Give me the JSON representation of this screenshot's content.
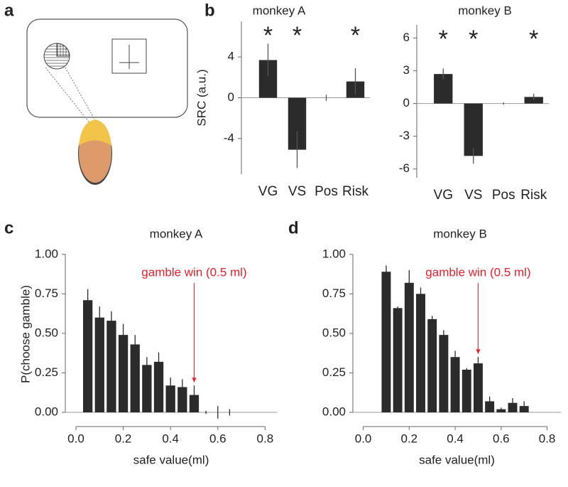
{
  "panel_labels": [
    "a",
    "b",
    "c",
    "d"
  ],
  "chart_data": [
    {
      "type": "bar",
      "title": "monkey A",
      "ylabel": "SRC (a.u.)",
      "color": "#2b2b2b",
      "categories": [
        "VG",
        "VS",
        "Pos",
        "Risk"
      ],
      "values": [
        3.7,
        -5.1,
        0,
        1.6
      ],
      "errors": [
        1.6,
        1.8,
        0.3,
        1.3
      ],
      "significance": [
        "*",
        "*",
        null,
        "*"
      ],
      "ylim": [
        -7.5,
        7.5
      ],
      "yticks": [
        -4,
        0,
        4
      ]
    },
    {
      "type": "bar",
      "title": "monkey B",
      "color": "#2b2b2b",
      "categories": [
        "VG",
        "VS",
        "Pos",
        "Risk"
      ],
      "values": [
        2.7,
        -4.8,
        0,
        0.6
      ],
      "errors": [
        0.5,
        0.7,
        0.1,
        0.3
      ],
      "significance": [
        "*",
        "*",
        null,
        "*"
      ],
      "ylim": [
        -6.8,
        7.2
      ],
      "yticks": [
        -6,
        -3,
        0,
        3,
        6
      ]
    },
    {
      "type": "bar",
      "title": "monkey A",
      "xlabel": "safe value(ml)",
      "ylabel": "P(choose gamble)",
      "color": "#2b2b2b",
      "x": [
        0.05,
        0.1,
        0.15,
        0.2,
        0.25,
        0.3,
        0.35,
        0.4,
        0.45,
        0.5,
        0.55,
        0.6,
        0.65
      ],
      "values": [
        0.71,
        0.6,
        0.58,
        0.49,
        0.43,
        0.3,
        0.32,
        0.17,
        0.16,
        0.11,
        0,
        0,
        0
      ],
      "errors": [
        0.07,
        0.07,
        0.06,
        0.07,
        0.06,
        0.05,
        0.06,
        0.05,
        0.05,
        0.06,
        0.01,
        0.04,
        0.02
      ],
      "annotation": {
        "text": "gamble win (0.5 ml)",
        "x": 0.5,
        "color": "#e8202a"
      },
      "xlim": [
        -0.045,
        0.85
      ],
      "ylim": [
        -0.09,
        1.08
      ],
      "xticks": [
        {
          "value": 0,
          "label": "0.0"
        },
        0.2,
        0.4,
        0.6,
        0.8
      ],
      "yticks": [
        {
          "value": 0,
          "label": "0.00"
        },
        0.25,
        {
          "value": 0.5,
          "label": "0.50"
        },
        0.75,
        {
          "value": 1,
          "label": "1.00"
        }
      ]
    },
    {
      "type": "bar",
      "title": "monkey B",
      "xlabel": "safe value(ml)",
      "color": "#2b2b2b",
      "x": [
        0.1,
        0.15,
        0.2,
        0.25,
        0.3,
        0.35,
        0.4,
        0.45,
        0.5,
        0.55,
        0.6,
        0.65,
        0.7
      ],
      "values": [
        0.89,
        0.66,
        0.82,
        0.75,
        0.59,
        0.49,
        0.35,
        0.27,
        0.31,
        0.07,
        0.02,
        0.06,
        0.04
      ],
      "errors": [
        0.04,
        0.01,
        0.08,
        0.04,
        0.02,
        0.03,
        0.04,
        0.01,
        0.04,
        0.03,
        0.01,
        0.03,
        0.03
      ],
      "annotation": {
        "text": "gamble win (0.5 ml)",
        "x": 0.5,
        "color": "#e8202a"
      },
      "xlim": [
        -0.045,
        0.86
      ],
      "ylim": [
        -0.09,
        1.08
      ],
      "xticks": [
        {
          "value": 0,
          "label": "0.0"
        },
        0.2,
        0.4,
        0.6,
        0.8
      ],
      "yticks": [
        {
          "value": 0,
          "label": "0.00"
        },
        0.25,
        {
          "value": 0.5,
          "label": "0.50"
        },
        0.75,
        {
          "value": 1,
          "label": "1.00"
        }
      ]
    }
  ]
}
